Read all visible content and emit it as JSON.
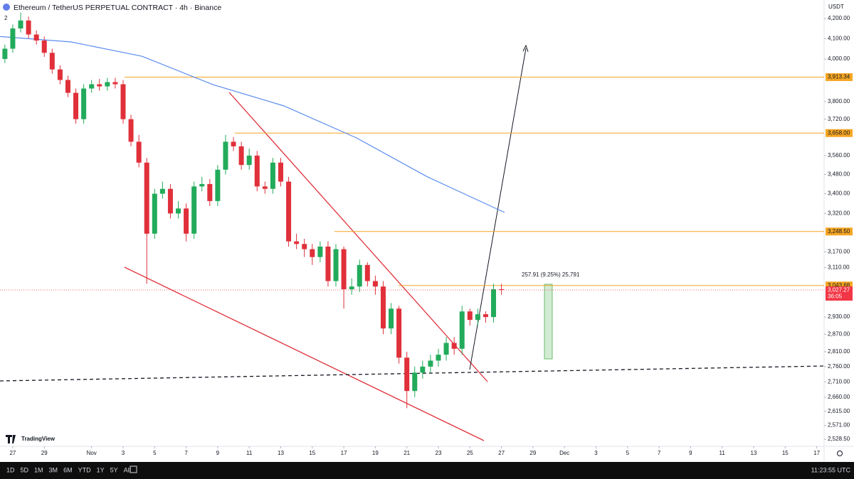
{
  "header": {
    "symbol_title": "Ethereum / TetherUS PERPETUAL CONTRACT · 4h · Binance",
    "badge": "2",
    "currency": "USDT",
    "logo": "TradingView"
  },
  "chart_data": {
    "type": "candlestick",
    "color_up": "#22ab5b",
    "color_down": "#e0303a",
    "x": [
      26.5,
      27,
      27.5,
      28,
      28.5,
      29,
      29.5,
      30,
      30.5,
      31,
      31.5,
      32,
      32.5,
      33,
      33.5,
      34,
      34.5,
      35,
      35.5,
      36,
      36.5,
      37,
      37.5,
      38,
      38.5,
      39,
      39.5,
      40,
      40.5,
      41,
      41.5,
      42,
      42.5,
      43,
      43.5,
      44,
      44.5,
      45,
      45.5,
      46,
      46.5,
      47,
      47.5,
      48,
      48.5,
      49,
      49.5,
      50,
      50.5,
      51,
      51.5,
      52,
      52.5,
      53,
      53.5,
      54,
      54.5,
      55,
      55.5,
      56,
      56.5,
      57,
      57.5,
      58
    ],
    "open": [
      4000,
      4050,
      4150,
      4190,
      4120,
      4090,
      4030,
      3950,
      3900,
      3840,
      3720,
      3860,
      3880,
      3870,
      3890,
      3880,
      3720,
      3620,
      3530,
      3240,
      3400,
      3420,
      3320,
      3340,
      3240,
      3430,
      3440,
      3370,
      3500,
      3620,
      3600,
      3520,
      3560,
      3430,
      3420,
      3530,
      3450,
      3210,
      3200,
      3180,
      3150,
      3190,
      3060,
      3180,
      3030,
      3040,
      3120,
      3060,
      3040,
      2890,
      2960,
      2790,
      2680,
      2740,
      2760,
      2780,
      2800,
      2840,
      2820,
      2950,
      2920,
      2940,
      2930,
      3030
    ],
    "high": [
      4070,
      4170,
      4230,
      4210,
      4140,
      4110,
      4050,
      3970,
      3920,
      3860,
      3880,
      3900,
      3905,
      3910,
      3910,
      3900,
      3740,
      3650,
      3550,
      3420,
      3450,
      3440,
      3370,
      3360,
      3450,
      3470,
      3460,
      3520,
      3650,
      3640,
      3620,
      3590,
      3580,
      3450,
      3550,
      3550,
      3470,
      3240,
      3220,
      3200,
      3210,
      3210,
      3200,
      3190,
      3070,
      3140,
      3130,
      3080,
      3060,
      2980,
      2970,
      2810,
      2760,
      2780,
      2800,
      2820,
      2860,
      2860,
      2970,
      2960,
      2960,
      2950,
      3050,
      3050
    ],
    "low": [
      3980,
      4030,
      4130,
      4100,
      4070,
      4010,
      3930,
      3880,
      3820,
      3700,
      3700,
      3840,
      3850,
      3850,
      3860,
      3700,
      3600,
      3510,
      3050,
      3220,
      3380,
      3300,
      3300,
      3210,
      3220,
      3410,
      3350,
      3350,
      3480,
      3580,
      3500,
      3500,
      3410,
      3400,
      3400,
      3430,
      3190,
      3180,
      3150,
      3120,
      3130,
      3040,
      3040,
      2960,
      3010,
      3020,
      3040,
      3010,
      2870,
      2870,
      2770,
      2625,
      2660,
      2720,
      2740,
      2760,
      2780,
      2800,
      2800,
      2900,
      2900,
      2910,
      2910,
      3010
    ],
    "close": [
      4050,
      4150,
      4190,
      4120,
      4090,
      4030,
      3950,
      3900,
      3840,
      3720,
      3860,
      3880,
      3870,
      3890,
      3880,
      3720,
      3620,
      3530,
      3240,
      3400,
      3420,
      3320,
      3340,
      3240,
      3430,
      3440,
      3370,
      3500,
      3620,
      3600,
      3520,
      3560,
      3430,
      3420,
      3530,
      3450,
      3210,
      3200,
      3180,
      3150,
      3190,
      3060,
      3180,
      3030,
      3040,
      3120,
      3060,
      3040,
      2890,
      2960,
      2790,
      2680,
      2740,
      2760,
      2780,
      2800,
      2840,
      2820,
      2950,
      2920,
      2940,
      2930,
      3030,
      3027.27
    ],
    "moving_average": {
      "color": "#5b8def",
      "x": [
        26.2,
        30.7,
        35.2,
        39.7,
        44.2,
        48.8,
        53.3,
        58.2
      ],
      "values": [
        4110,
        4083,
        4013,
        3878,
        3780,
        3637,
        3470,
        3324
      ]
    },
    "log": true,
    "ylim": [
      2507,
      4295
    ],
    "yticks": [
      {
        "value": 4200,
        "label": "4,200.00"
      },
      {
        "value": 4100,
        "label": "4,100.00"
      },
      {
        "value": 4000,
        "label": "4,000.00"
      },
      {
        "value": 3800,
        "label": "3,800.00"
      },
      {
        "value": 3720,
        "label": "3,720.00"
      },
      {
        "value": 3560,
        "label": "3,560.00"
      },
      {
        "value": 3480,
        "label": "3,480.00"
      },
      {
        "value": 3400,
        "label": "3,400.00"
      },
      {
        "value": 3320,
        "label": "3,320.00"
      },
      {
        "value": 3170,
        "label": "3,170.00"
      },
      {
        "value": 3110,
        "label": "3,110.00"
      },
      {
        "value": 2930,
        "label": "2,930.00"
      },
      {
        "value": 2870,
        "label": "2,870.00"
      },
      {
        "value": 2810,
        "label": "2,810.00"
      },
      {
        "value": 2760,
        "label": "2,760.00"
      },
      {
        "value": 2710,
        "label": "2,710.00"
      },
      {
        "value": 2660,
        "label": "2,660.00"
      },
      {
        "value": 2615,
        "label": "2,615.00"
      },
      {
        "value": 2571,
        "label": "2,571.00"
      },
      {
        "value": 2528.5,
        "label": "2,528.50"
      }
    ],
    "xlim": [
      26.19,
      78.47
    ],
    "xticks": [
      27,
      29,
      {
        "value": 32,
        "label": "Nov"
      },
      {
        "value": 34,
        "label": "3"
      },
      {
        "value": 36,
        "label": "5"
      },
      {
        "value": 38,
        "label": "7"
      },
      {
        "value": 40,
        "label": "9"
      },
      {
        "value": 42,
        "label": "11"
      },
      {
        "value": 44,
        "label": "13"
      },
      {
        "value": 46,
        "label": "15"
      },
      {
        "value": 48,
        "label": "17"
      },
      {
        "value": 50,
        "label": "19"
      },
      {
        "value": 52,
        "label": "21"
      },
      {
        "value": 54,
        "label": "23"
      },
      {
        "value": 56,
        "label": "25"
      },
      {
        "value": 58,
        "label": "27"
      },
      {
        "value": 60,
        "label": "29"
      },
      {
        "value": 62,
        "label": "Dec"
      },
      {
        "value": 64,
        "label": "3"
      },
      {
        "value": 66,
        "label": "5"
      },
      {
        "value": 68,
        "label": "7"
      },
      {
        "value": 70,
        "label": "9"
      },
      {
        "value": 72,
        "label": "11"
      },
      {
        "value": 74,
        "label": "13"
      },
      {
        "value": 76,
        "label": "15"
      },
      {
        "value": 78,
        "label": "17"
      }
    ],
    "levels": [
      {
        "value": 3913.34,
        "label": "3,913.34"
      },
      {
        "value": 3658,
        "label": "3,658.00"
      },
      {
        "value": 3248.5,
        "label": "3,248.50"
      },
      {
        "value": 3043.68,
        "label": "3,043.68"
      }
    ],
    "level_color": "#f5a623",
    "last_price": {
      "value": 3027.27,
      "label": "3,027.27",
      "countdown": "36:05",
      "color": "#f23645"
    },
    "measure_label": "257.91 (9.25%) 25,791"
  },
  "toolbar": {
    "ranges": [
      "1D",
      "5D",
      "1M",
      "3M",
      "6M",
      "YTD",
      "1Y",
      "5Y",
      "All"
    ],
    "clock": "11:23:55 UTC"
  }
}
